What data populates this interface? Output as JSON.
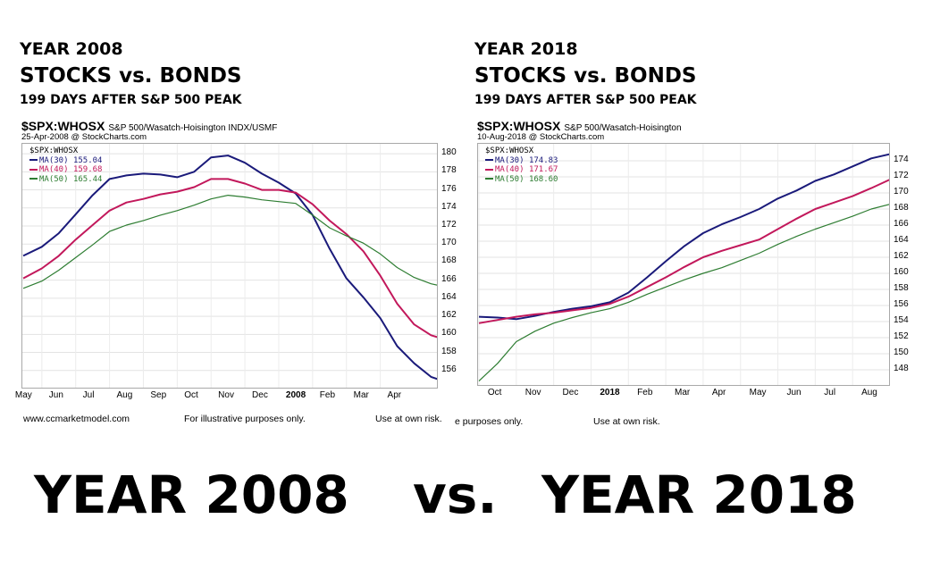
{
  "panels": [
    {
      "heading_year": "YEAR 2008",
      "heading_title": "STOCKS vs. BONDS",
      "heading_sub": "199 DAYS AFTER S&P 500 PEAK",
      "symbol": "$SPX:WHOSX",
      "symbol_desc": "S&P 500/Wasatch-Hoisington INDX/USMF",
      "date_source": "25-Apr-2008 @ StockCharts.com",
      "footer_left": "www.ccmarketmodel.com",
      "footer_mid": "For illustrative purposes only.",
      "footer_right": "Use at own risk."
    },
    {
      "heading_year": "YEAR 2018",
      "heading_title": "STOCKS vs. BONDS",
      "heading_sub": "199 DAYS AFTER S&P 500 PEAK",
      "symbol": "$SPX:WHOSX",
      "symbol_desc": "S&P 500/Wasatch-Hoisington",
      "date_source": "10-Aug-2018 @ StockCharts.com",
      "footer_left": "",
      "footer_mid": "e purposes only.",
      "footer_right": "Use at own risk."
    }
  ],
  "bottom_caption": {
    "left": "YEAR 2008",
    "mid": "vs.",
    "right": "YEAR 2018"
  },
  "chart_data": [
    {
      "type": "line",
      "ratio_label": "$SPX:WHOSX",
      "legend_position": "top-left",
      "grid": true,
      "ylim": [
        154,
        181
      ],
      "yticks": [
        156,
        158,
        160,
        162,
        164,
        166,
        168,
        170,
        172,
        174,
        176,
        178,
        180
      ],
      "x_tick_labels": [
        "May",
        "Jun",
        "Jul",
        "Aug",
        "Sep",
        "Oct",
        "Nov",
        "Dec",
        "2008",
        "Feb",
        "Mar",
        "Apr"
      ],
      "x_tick_index": [
        1,
        2,
        3,
        4,
        5,
        6,
        7,
        8,
        9,
        10,
        11,
        12
      ],
      "x_range": [
        0.45,
        12.7
      ],
      "series": [
        {
          "name": "MA(30)",
          "last_value": "155.04",
          "color": "#1a1a7a",
          "x": [
            0.45,
            1,
            1.5,
            2,
            2.5,
            3,
            3.5,
            4,
            4.5,
            5,
            5.5,
            6,
            6.5,
            7,
            7.5,
            8,
            8.5,
            9,
            9.5,
            10,
            10.5,
            11,
            11.5,
            12,
            12.5,
            12.7
          ],
          "y": [
            168.7,
            169.7,
            171.2,
            173.3,
            175.4,
            177.2,
            177.6,
            177.8,
            177.7,
            177.4,
            178.0,
            179.6,
            179.8,
            179.0,
            177.8,
            176.8,
            175.6,
            173.2,
            169.5,
            166.2,
            164.1,
            161.8,
            158.7,
            156.8,
            155.3,
            155.04
          ]
        },
        {
          "name": "MA(40)",
          "last_value": "159.68",
          "color": "#c2185b",
          "x": [
            0.45,
            1,
            1.5,
            2,
            2.5,
            3,
            3.5,
            4,
            4.5,
            5,
            5.5,
            6,
            6.5,
            7,
            7.5,
            8,
            8.5,
            9,
            9.5,
            10,
            10.5,
            11,
            11.5,
            12,
            12.5,
            12.7
          ],
          "y": [
            166.2,
            167.3,
            168.7,
            170.5,
            172.1,
            173.7,
            174.6,
            175.0,
            175.5,
            175.8,
            176.3,
            177.2,
            177.2,
            176.7,
            176.0,
            176.0,
            175.7,
            174.4,
            172.6,
            171.1,
            169.2,
            166.5,
            163.4,
            161.1,
            159.9,
            159.68
          ]
        },
        {
          "name": "MA(50)",
          "last_value": "165.44",
          "color": "#2e7d32",
          "x": [
            0.45,
            1,
            1.5,
            2,
            2.5,
            3,
            3.5,
            4,
            4.5,
            5,
            5.5,
            6,
            6.5,
            7,
            7.5,
            8,
            8.5,
            9,
            9.5,
            10,
            10.5,
            11,
            11.5,
            12,
            12.5,
            12.7
          ],
          "y": [
            165.1,
            165.9,
            167.1,
            168.5,
            169.9,
            171.4,
            172.1,
            172.6,
            173.2,
            173.7,
            174.3,
            175.0,
            175.4,
            175.2,
            174.9,
            174.7,
            174.5,
            173.2,
            171.8,
            170.9,
            170.1,
            168.9,
            167.4,
            166.3,
            165.6,
            165.44
          ]
        }
      ]
    },
    {
      "type": "line",
      "ratio_label": "$SPX:WHOSX",
      "legend_position": "top-left",
      "grid": true,
      "ylim": [
        146,
        176
      ],
      "yticks": [
        148,
        150,
        152,
        154,
        156,
        158,
        160,
        162,
        164,
        166,
        168,
        170,
        172,
        174
      ],
      "x_tick_labels": [
        "Oct",
        "Nov",
        "Dec",
        "2018",
        "Feb",
        "Mar",
        "Apr",
        "May",
        "Jun",
        "Jul",
        "Aug"
      ],
      "x_tick_index": [
        1,
        2,
        3,
        4,
        5,
        6,
        7,
        8,
        9,
        10,
        11
      ],
      "x_range": [
        0.0,
        11.0
      ],
      "series": [
        {
          "name": "MA(30)",
          "last_value": "174.83",
          "color": "#1a1a7a",
          "x": [
            0,
            0.5,
            1,
            1.5,
            2,
            2.5,
            3,
            3.5,
            4,
            4.5,
            5,
            5.5,
            6,
            6.5,
            7,
            7.5,
            8,
            8.5,
            9,
            9.5,
            10,
            10.5,
            11
          ],
          "y": [
            154.6,
            154.5,
            154.3,
            154.7,
            155.2,
            155.6,
            155.9,
            156.4,
            157.6,
            159.5,
            161.5,
            163.4,
            165.0,
            166.1,
            167.0,
            168.0,
            169.3,
            170.3,
            171.5,
            172.3,
            173.3,
            174.3,
            174.83
          ]
        },
        {
          "name": "MA(40)",
          "last_value": "171.67",
          "color": "#c2185b",
          "x": [
            0,
            0.5,
            1,
            1.5,
            2,
            2.5,
            3,
            3.5,
            4,
            4.5,
            5,
            5.5,
            6,
            6.5,
            7,
            7.5,
            8,
            8.5,
            9,
            9.5,
            10,
            10.5,
            11
          ],
          "y": [
            153.8,
            154.2,
            154.6,
            154.9,
            155.1,
            155.4,
            155.7,
            156.2,
            157.1,
            158.3,
            159.5,
            160.8,
            162.0,
            162.8,
            163.5,
            164.2,
            165.5,
            166.8,
            168.0,
            168.8,
            169.6,
            170.6,
            171.67
          ]
        },
        {
          "name": "MA(50)",
          "last_value": "168.60",
          "color": "#2e7d32",
          "x": [
            0,
            0.5,
            1,
            1.5,
            2,
            2.5,
            3,
            3.5,
            4,
            4.5,
            5,
            5.5,
            6,
            6.5,
            7,
            7.5,
            8,
            8.5,
            9,
            9.5,
            10,
            10.5,
            11
          ],
          "y": [
            146.6,
            148.8,
            151.5,
            152.8,
            153.8,
            154.5,
            155.1,
            155.6,
            156.4,
            157.4,
            158.3,
            159.2,
            160.0,
            160.7,
            161.6,
            162.5,
            163.6,
            164.6,
            165.5,
            166.3,
            167.1,
            168.0,
            168.6
          ]
        }
      ]
    }
  ]
}
